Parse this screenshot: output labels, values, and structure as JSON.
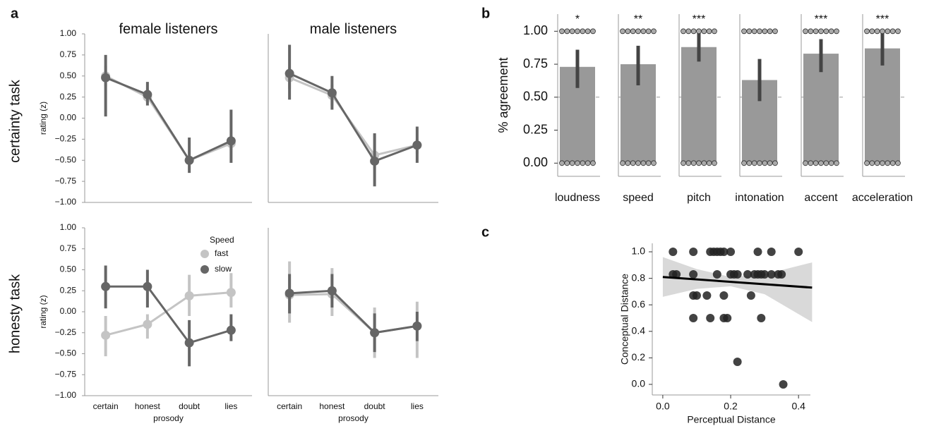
{
  "figure": {
    "panel_labels": [
      "a",
      "b",
      "c"
    ],
    "row_labels": [
      {
        "text": "certainty task",
        "color": "#4a72c4"
      },
      {
        "text": "honesty task",
        "color": "#27a85a"
      }
    ]
  },
  "chart_data": [
    {
      "type": "pointplot",
      "title": "female listeners",
      "ylabel": "rating (z)",
      "categories": [
        null,
        null,
        null,
        null
      ],
      "ylim": [
        -1,
        1
      ],
      "yticks": [
        {
          "value": -1,
          "label": "−1.00"
        },
        {
          "value": -0.75,
          "label": "−0.75"
        },
        {
          "value": -0.5,
          "label": "−0.50"
        },
        {
          "value": -0.25,
          "label": "−0.25"
        },
        {
          "value": 0,
          "label": "0.00"
        },
        {
          "value": 0.25,
          "label": "0.25"
        },
        {
          "value": 0.5,
          "label": "0.50"
        },
        {
          "value": 0.75,
          "label": "0.75"
        },
        {
          "value": 1,
          "label": "1.00"
        }
      ],
      "series": [
        {
          "name": "fast",
          "color": "#c4c4c4",
          "values": [
            0.5,
            0.25,
            -0.5,
            -0.3
          ],
          "ci": [
            [
              0.38,
              0.62
            ],
            [
              0.18,
              0.35
            ],
            [
              -0.55,
              -0.45
            ],
            [
              -0.38,
              -0.2
            ]
          ]
        },
        {
          "name": "slow",
          "color": "#666666",
          "values": [
            0.48,
            0.28,
            -0.5,
            -0.27
          ],
          "ci": [
            [
              0.02,
              0.75
            ],
            [
              0.15,
              0.43
            ],
            [
              -0.65,
              -0.23
            ],
            [
              -0.53,
              0.1
            ]
          ]
        }
      ]
    },
    {
      "type": "pointplot",
      "title": "male listeners",
      "categories": [
        null,
        null,
        null,
        null
      ],
      "ylim": [
        -1,
        1
      ],
      "series": [
        {
          "name": "fast",
          "color": "#c4c4c4",
          "values": [
            0.48,
            0.27,
            -0.44,
            -0.32
          ],
          "ci": [
            [
              0.35,
              0.6
            ],
            [
              0.15,
              0.4
            ],
            [
              -0.6,
              -0.2
            ],
            [
              -0.42,
              -0.25
            ]
          ]
        },
        {
          "name": "slow",
          "color": "#666666",
          "values": [
            0.53,
            0.3,
            -0.51,
            -0.32
          ],
          "ci": [
            [
              0.22,
              0.87
            ],
            [
              0.1,
              0.5
            ],
            [
              -0.81,
              -0.18
            ],
            [
              -0.53,
              -0.1
            ]
          ]
        }
      ]
    },
    {
      "type": "pointplot",
      "ylabel": "rating (z)",
      "xlabel": "prosody",
      "categories": [
        "certain",
        "honest",
        "doubt",
        "lies"
      ],
      "ylim": [
        -1,
        1
      ],
      "yticks": [
        {
          "value": -1,
          "label": "−1.00"
        },
        {
          "value": -0.75,
          "label": "−0.75"
        },
        {
          "value": -0.5,
          "label": "−0.50"
        },
        {
          "value": -0.25,
          "label": "−0.25"
        },
        {
          "value": 0,
          "label": "0.00"
        },
        {
          "value": 0.25,
          "label": "0.25"
        },
        {
          "value": 0.5,
          "label": "0.50"
        },
        {
          "value": 0.75,
          "label": "0.75"
        },
        {
          "value": 1,
          "label": "1.00"
        }
      ],
      "legend": true,
      "legend_title": "Speed",
      "legend_loc": "upper right",
      "series": [
        {
          "name": "fast",
          "color": "#c4c4c4",
          "values": [
            -0.28,
            -0.15,
            0.19,
            0.23
          ],
          "ci": [
            [
              -0.53,
              -0.05
            ],
            [
              -0.32,
              -0.03
            ],
            [
              -0.05,
              0.44
            ],
            [
              0.05,
              0.46
            ]
          ]
        },
        {
          "name": "slow",
          "color": "#666666",
          "values": [
            0.3,
            0.3,
            -0.37,
            -0.22
          ],
          "ci": [
            [
              0.04,
              0.55
            ],
            [
              0.05,
              0.5
            ],
            [
              -0.65,
              -0.1
            ],
            [
              -0.35,
              -0.03
            ]
          ]
        }
      ]
    },
    {
      "type": "pointplot",
      "xlabel": "prosody",
      "categories": [
        "certain",
        "honest",
        "doubt",
        "lies"
      ],
      "ylim": [
        -1,
        1
      ],
      "series": [
        {
          "name": "fast",
          "color": "#c4c4c4",
          "values": [
            0.2,
            0.21,
            -0.25,
            -0.17
          ],
          "ci": [
            [
              -0.13,
              0.6
            ],
            [
              -0.05,
              0.52
            ],
            [
              -0.55,
              0.05
            ],
            [
              -0.55,
              0.12
            ]
          ]
        },
        {
          "name": "slow",
          "color": "#666666",
          "values": [
            0.22,
            0.25,
            -0.25,
            -0.17
          ],
          "ci": [
            [
              -0.02,
              0.45
            ],
            [
              0.05,
              0.45
            ],
            [
              -0.48,
              -0.02
            ],
            [
              -0.35,
              0.0
            ]
          ]
        }
      ]
    },
    {
      "type": "bar",
      "ylabel": "% agreement",
      "color": "#999999",
      "ci_color": "#444444",
      "reference_line": 0.5,
      "categories": [
        "loudness",
        "speed",
        "pitch",
        "intonation",
        "accent",
        "acceleration"
      ],
      "values": [
        0.73,
        0.75,
        0.88,
        0.63,
        0.83,
        0.87
      ],
      "ci": [
        [
          0.57,
          0.86
        ],
        [
          0.59,
          0.89
        ],
        [
          0.77,
          0.99
        ],
        [
          0.47,
          0.79
        ],
        [
          0.69,
          0.94
        ],
        [
          0.74,
          0.99
        ]
      ],
      "annotations": [
        "*",
        "**",
        "***",
        null,
        "***",
        "***"
      ],
      "points": [
        [
          1,
          1,
          1,
          1,
          1,
          1,
          1,
          0,
          0,
          0,
          0,
          0,
          0,
          0
        ],
        [
          1,
          1,
          1,
          1,
          1,
          1,
          1,
          0,
          0,
          0,
          0,
          0,
          0,
          0
        ],
        [
          1,
          1,
          1,
          1,
          1,
          1,
          1,
          0,
          0,
          0,
          0,
          0,
          0,
          0
        ],
        [
          1,
          1,
          1,
          1,
          1,
          1,
          1,
          0,
          0,
          0,
          0,
          0,
          0,
          0
        ],
        [
          1,
          1,
          1,
          1,
          1,
          1,
          1,
          0,
          0,
          0,
          0,
          0,
          0,
          0
        ],
        [
          1,
          1,
          1,
          1,
          1,
          1,
          1,
          0,
          0,
          0,
          0,
          0,
          0,
          0
        ]
      ],
      "ylim": [
        -0.1,
        1.13
      ],
      "yticks": [
        {
          "value": 0,
          "label": "0.00"
        },
        {
          "value": 0.25,
          "label": "0.25"
        },
        {
          "value": 0.5,
          "label": "0.50"
        },
        {
          "value": 0.75,
          "label": "0.75"
        },
        {
          "value": 1,
          "label": "1.00"
        }
      ]
    },
    {
      "type": "scatter",
      "xlabel": "Perceptual Distance",
      "ylabel": "Conceptual Distance",
      "color": "#222222",
      "x": [
        0.03,
        0.09,
        0.14,
        0.15,
        0.16,
        0.17,
        0.18,
        0.2,
        0.28,
        0.32,
        0.4,
        0.03,
        0.04,
        0.09,
        0.16,
        0.2,
        0.21,
        0.22,
        0.25,
        0.27,
        0.28,
        0.29,
        0.3,
        0.32,
        0.34,
        0.35,
        0.09,
        0.1,
        0.13,
        0.18,
        0.26,
        0.09,
        0.14,
        0.18,
        0.19,
        0.29,
        0.22,
        0.355
      ],
      "values": [
        1,
        1,
        1,
        1,
        1,
        1,
        1,
        1,
        1,
        1,
        1,
        0.83,
        0.83,
        0.83,
        0.83,
        0.83,
        0.83,
        0.83,
        0.83,
        0.83,
        0.83,
        0.83,
        0.83,
        0.83,
        0.83,
        0.83,
        0.67,
        0.67,
        0.67,
        0.67,
        0.67,
        0.5,
        0.5,
        0.5,
        0.5,
        0.5,
        0.17,
        0
      ],
      "fit": {
        "x": [
          0,
          0.44
        ],
        "y": [
          0.81,
          0.73
        ]
      },
      "band": {
        "x": [
          0,
          0.1,
          0.2,
          0.3,
          0.44
        ],
        "low": [
          0.66,
          0.72,
          0.74,
          0.68,
          0.47
        ],
        "high": [
          0.96,
          0.87,
          0.81,
          0.83,
          0.92
        ]
      },
      "xlim": [
        -0.031,
        0.435
      ],
      "ylim": [
        -0.08,
        1.064
      ],
      "xticks": [
        {
          "value": 0,
          "label": "0.0"
        },
        {
          "value": 0.2,
          "label": "0.2"
        },
        {
          "value": 0.4,
          "label": "0.4"
        }
      ],
      "yticks": [
        {
          "value": 0,
          "label": "0.0"
        },
        {
          "value": 0.2,
          "label": "0.2"
        },
        {
          "value": 0.4,
          "label": "0.4"
        },
        {
          "value": 0.6,
          "label": "0.6"
        },
        {
          "value": 0.8,
          "label": "0.8"
        },
        {
          "value": 1,
          "label": "1.0"
        }
      ]
    }
  ]
}
